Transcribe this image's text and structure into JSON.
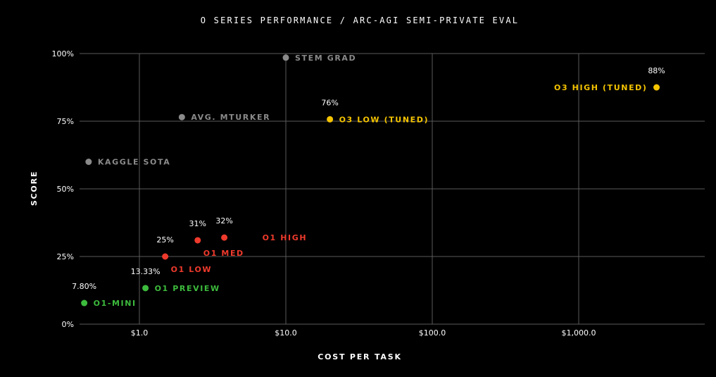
{
  "chart_data": {
    "type": "scatter",
    "title": "O SERIES PERFORMANCE / ARC-AGI SEMI-PRIVATE EVAL",
    "xlabel": "COST PER TASK",
    "ylabel": "SCORE",
    "x_scale": "log",
    "xlim": [
      0.4,
      5000
    ],
    "ylim": [
      0,
      100
    ],
    "x_ticks": [
      {
        "value": 1,
        "label": "$1.0"
      },
      {
        "value": 10,
        "label": "$10.0"
      },
      {
        "value": 100,
        "label": "$100.0"
      },
      {
        "value": 1000,
        "label": "$1,000.0"
      }
    ],
    "y_ticks": [
      {
        "value": 0,
        "label": "0%"
      },
      {
        "value": 25,
        "label": "25%"
      },
      {
        "value": 50,
        "label": "50%"
      },
      {
        "value": 75,
        "label": "75%"
      },
      {
        "value": 100,
        "label": "100%"
      }
    ],
    "grid": true,
    "points": [
      {
        "label": "O1-MINI",
        "x": 0.42,
        "y": 7.8,
        "value_label": "7.80%",
        "color": "#3dbb3d",
        "label_side": "right"
      },
      {
        "label": "O1 PREVIEW",
        "x": 1.1,
        "y": 13.33,
        "value_label": "13.33%",
        "color": "#3dbb3d",
        "label_side": "right"
      },
      {
        "label": "O1 LOW",
        "x": 1.5,
        "y": 25,
        "value_label": "25%",
        "color": "#ee3a2c",
        "label_side": "below"
      },
      {
        "label": "O1 MED",
        "x": 2.5,
        "y": 31,
        "value_label": "31%",
        "color": "#ee3a2c",
        "label_side": "below"
      },
      {
        "label": "O1 HIGH",
        "x": 3.8,
        "y": 32,
        "value_label": "32%",
        "color": "#ee3a2c",
        "label_side": "right-far"
      },
      {
        "label": "O3 LOW (TUNED)",
        "x": 20,
        "y": 75.7,
        "value_label": "76%",
        "color": "#f5c400",
        "label_side": "right"
      },
      {
        "label": "O3 HIGH (TUNED)",
        "x": 3400,
        "y": 87.5,
        "value_label": "88%",
        "color": "#f5c400",
        "label_side": "left"
      },
      {
        "label": "KAGGLE SOTA",
        "x": 0.45,
        "y": 60,
        "value_label": "",
        "color": "#8a8a8a",
        "label_side": "right"
      },
      {
        "label": "AVG. MTURKER",
        "x": 1.95,
        "y": 76.5,
        "value_label": "",
        "color": "#8a8a8a",
        "label_side": "right"
      },
      {
        "label": "STEM GRAD",
        "x": 10,
        "y": 98.5,
        "value_label": "",
        "color": "#8a8a8a",
        "label_side": "right"
      }
    ]
  }
}
